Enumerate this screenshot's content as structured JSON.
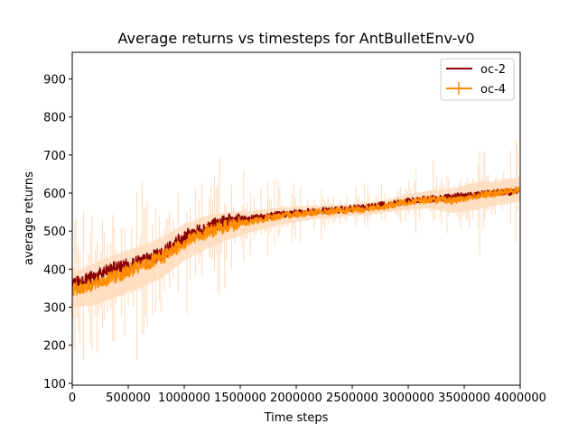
{
  "chart_data": {
    "type": "line",
    "title": "Average returns vs timesteps for AntBulletEnv-v0",
    "xlabel": "Time steps",
    "ylabel": "average returns",
    "xlim": [
      0,
      4000000
    ],
    "ylim": [
      95,
      970
    ],
    "x_ticks": [
      "0",
      "500000",
      "1000000",
      "1500000",
      "2000000",
      "2500000",
      "3000000",
      "3500000",
      "4000000"
    ],
    "y_ticks": [
      "100",
      "200",
      "300",
      "400",
      "500",
      "600",
      "700",
      "800",
      "900"
    ],
    "legend_position": "top-right",
    "grid": false,
    "x": [
      0,
      200000,
      400000,
      600000,
      800000,
      1000000,
      1200000,
      1400000,
      1600000,
      1800000,
      2000000,
      2200000,
      2400000,
      2600000,
      2800000,
      3000000,
      3200000,
      3400000,
      3600000,
      3800000,
      4000000
    ],
    "series": [
      {
        "name": "oc-2",
        "color": "#8b0000",
        "values": [
          362,
          380,
          405,
          418,
          440,
          485,
          510,
          527,
          533,
          542,
          548,
          552,
          556,
          562,
          570,
          578,
          585,
          590,
          597,
          602,
          605
        ]
      },
      {
        "name": "oc-4",
        "color": "#ff8c00",
        "band_color": "#ffdab9",
        "values": [
          345,
          360,
          383,
          405,
          430,
          470,
          497,
          515,
          525,
          537,
          545,
          550,
          553,
          558,
          565,
          577,
          583,
          580,
          592,
          600,
          610
        ],
        "std": [
          55,
          70,
          70,
          70,
          65,
          60,
          55,
          45,
          35,
          30,
          25,
          22,
          20,
          20,
          20,
          25,
          30,
          40,
          45,
          40,
          40
        ]
      }
    ]
  }
}
